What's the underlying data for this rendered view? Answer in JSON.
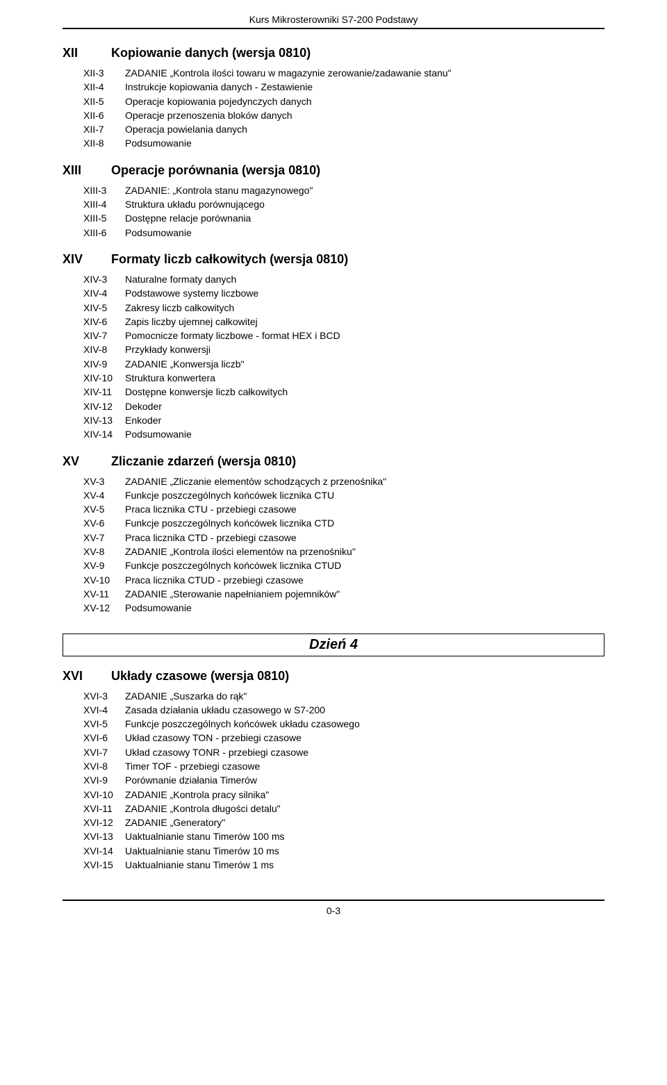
{
  "header": "Kurs Mikrosterowniki S7-200 Podstawy",
  "footer": "0-3",
  "dayLabel": "Dzień 4",
  "sections": [
    {
      "num": "XII",
      "title": "Kopiowanie danych (wersja 0810)",
      "items": [
        {
          "num": "XII-3",
          "text": "ZADANIE „Kontrola ilości towaru w magazynie zerowanie/zadawanie stanu\""
        },
        {
          "num": "XII-4",
          "text": "Instrukcje kopiowania danych - Zestawienie"
        },
        {
          "num": "XII-5",
          "text": "Operacje kopiowania pojedynczych danych"
        },
        {
          "num": "XII-6",
          "text": "Operacje przenoszenia bloków danych"
        },
        {
          "num": "XII-7",
          "text": "Operacja powielania danych"
        },
        {
          "num": "XII-8",
          "text": "Podsumowanie"
        }
      ]
    },
    {
      "num": "XIII",
      "title": "Operacje porównania (wersja 0810)",
      "items": [
        {
          "num": "XIII-3",
          "text": "ZADANIE: „Kontrola stanu magazynowego\""
        },
        {
          "num": "XIII-4",
          "text": "Struktura układu porównującego"
        },
        {
          "num": "XIII-5",
          "text": "Dostępne relacje porównania"
        },
        {
          "num": "XIII-6",
          "text": "Podsumowanie"
        }
      ]
    },
    {
      "num": "XIV",
      "title": "Formaty liczb całkowitych (wersja 0810)",
      "items": [
        {
          "num": "XIV-3",
          "text": "Naturalne formaty danych"
        },
        {
          "num": "XIV-4",
          "text": "Podstawowe systemy liczbowe"
        },
        {
          "num": "XIV-5",
          "text": "Zakresy liczb całkowitych"
        },
        {
          "num": "XIV-6",
          "text": "Zapis liczby ujemnej całkowitej"
        },
        {
          "num": "XIV-7",
          "text": "Pomocnicze formaty liczbowe - format HEX i BCD"
        },
        {
          "num": "XIV-8",
          "text": "Przykłady konwersji"
        },
        {
          "num": "XIV-9",
          "text": "ZADANIE „Konwersja liczb\""
        },
        {
          "num": "XIV-10",
          "text": "Struktura konwertera"
        },
        {
          "num": "XIV-11",
          "text": "Dostępne konwersje liczb całkowitych"
        },
        {
          "num": "XIV-12",
          "text": "Dekoder"
        },
        {
          "num": "XIV-13",
          "text": "Enkoder"
        },
        {
          "num": "XIV-14",
          "text": "Podsumowanie"
        }
      ]
    },
    {
      "num": "XV",
      "title": "Zliczanie zdarzeń (wersja 0810)",
      "items": [
        {
          "num": "XV-3",
          "text": "ZADANIE „Zliczanie elementów schodzących z przenośnika\""
        },
        {
          "num": "XV-4",
          "text": "Funkcje poszczególnych końcówek licznika CTU"
        },
        {
          "num": "XV-5",
          "text": "Praca licznika CTU - przebiegi czasowe"
        },
        {
          "num": "XV-6",
          "text": "Funkcje poszczególnych końcówek licznika CTD"
        },
        {
          "num": "XV-7",
          "text": "Praca licznika CTD - przebiegi czasowe"
        },
        {
          "num": "XV-8",
          "text": "ZADANIE „Kontrola ilości elementów na przenośniku\""
        },
        {
          "num": "XV-9",
          "text": "Funkcje poszczególnych końcówek licznika CTUD"
        },
        {
          "num": "XV-10",
          "text": "Praca licznika CTUD - przebiegi czasowe"
        },
        {
          "num": "XV-11",
          "text": "ZADANIE „Sterowanie napełnianiem pojemników\""
        },
        {
          "num": "XV-12",
          "text": "Podsumowanie"
        }
      ]
    },
    {
      "num": "XVI",
      "title": "Układy czasowe (wersja 0810)",
      "items": [
        {
          "num": "XVI-3",
          "text": "ZADANIE „Suszarka do rąk\""
        },
        {
          "num": "XVI-4",
          "text": "Zasada działania układu czasowego w S7-200"
        },
        {
          "num": "XVI-5",
          "text": "Funkcje poszczególnych końcówek układu czasowego"
        },
        {
          "num": "XVI-6",
          "text": "Układ czasowy TON - przebiegi czasowe"
        },
        {
          "num": "XVI-7",
          "text": "Układ czasowy TONR - przebiegi czasowe"
        },
        {
          "num": "XVI-8",
          "text": "Timer TOF - przebiegi czasowe"
        },
        {
          "num": "XVI-9",
          "text": "Porównanie działania Timerów"
        },
        {
          "num": "XVI-10",
          "text": "ZADANIE „Kontrola pracy silnika\""
        },
        {
          "num": "XVI-11",
          "text": "ZADANIE „Kontrola długości detalu\""
        },
        {
          "num": "XVI-12",
          "text": "ZADANIE „Generatory\""
        },
        {
          "num": "XVI-13",
          "text": "Uaktualnianie stanu Timerów 100 ms"
        },
        {
          "num": "XVI-14",
          "text": "Uaktualnianie stanu Timerów 10 ms"
        },
        {
          "num": "XVI-15",
          "text": "Uaktualnianie stanu Timerów 1 ms"
        }
      ]
    }
  ]
}
